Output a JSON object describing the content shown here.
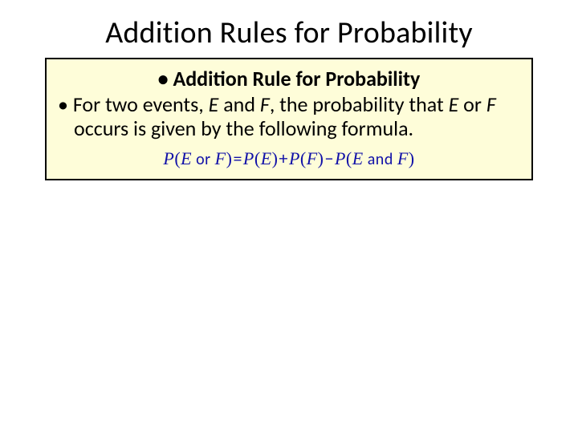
{
  "slide": {
    "title": "Addition Rules for Probability",
    "box": {
      "background_color": "#fefdd9",
      "border_color": "#000000",
      "sub_header": "Addition Rule for Probability",
      "body_prefix": "• For two events, ",
      "body_var1": "E",
      "body_mid1": " and ",
      "body_var2": "F",
      "body_mid2": ", the probability that ",
      "body_var3": "E",
      "body_mid3": " or ",
      "body_var4": "F",
      "body_suffix": " occurs is given by the following formula.",
      "formula": {
        "color": "#1111a8",
        "p1": "P",
        "lp1": "(",
        "e1": "E",
        "or": " or ",
        "f1": "F",
        "rp1": ")",
        "eq": "=",
        "p2": "P",
        "lp2": "(",
        "e2": "E",
        "rp2": ")",
        "plus": "+",
        "p3": "P",
        "lp3": "(",
        "f2": "F",
        "rp3": ")",
        "minus": "−",
        "p4": "P",
        "lp4": "(",
        "e3": "E",
        "and": " and ",
        "f3": "F",
        "rp4": ")"
      }
    }
  }
}
